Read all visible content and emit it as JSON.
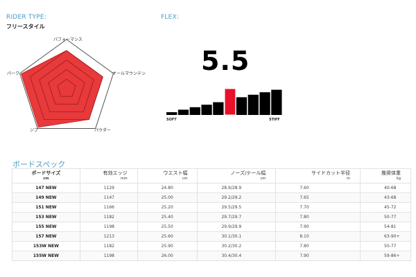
{
  "rider_type": {
    "label": "RIDER TYPE:",
    "value": "フリースタイル",
    "chart_data": {
      "type": "radar",
      "axes": [
        "パフォーマンス",
        "オールマウンテン",
        "パウダー",
        "ジブ",
        "パーク"
      ],
      "values": [
        4,
        4,
        4,
        5,
        5
      ],
      "max": 5,
      "color": "#e8393b"
    }
  },
  "flex": {
    "label": "FLEX:",
    "value": "5.5",
    "soft_label": "SOFT",
    "stiff_label": "STIFF",
    "scale_max": 10,
    "highlight_color": "#e8102a"
  },
  "specs": {
    "title": "ボードスペック",
    "headers": [
      {
        "name": "ボードサイズ",
        "unit": "cm"
      },
      {
        "name": "有効エッジ",
        "unit": "mm"
      },
      {
        "name": "ウエスト幅",
        "unit": "cm"
      },
      {
        "name": "ノーズ/テール幅",
        "unit": "cm"
      },
      {
        "name": "サイドカット半径",
        "unit": "m"
      },
      {
        "name": "推奨体重",
        "unit": "kg"
      }
    ],
    "rows": [
      [
        "147 NEW",
        "1129",
        "24.80",
        "28.9/28.9",
        "7.60",
        "40-68"
      ],
      [
        "149 NEW",
        "1147",
        "25.00",
        "29.2/29.2",
        "7.65",
        "43-68"
      ],
      [
        "151 NEW",
        "1166",
        "25.20",
        "29.5/29.5",
        "7.70",
        "45-72"
      ],
      [
        "153 NEW",
        "1182",
        "25.40",
        "29.7/29.7",
        "7.80",
        "50-77"
      ],
      [
        "155 NEW",
        "1198",
        "25.50",
        "29.9/29.9",
        "7.90",
        "54-81"
      ],
      [
        "157 NEW",
        "1213",
        "25.60",
        "30.1/30.1",
        "8.10",
        "63-90+"
      ],
      [
        "153W NEW",
        "1182",
        "25.90",
        "30.2/30.2",
        "7.80",
        "50-77"
      ],
      [
        "155W NEW",
        "1198",
        "26.00",
        "30.4/30.4",
        "7.90",
        "59-86+"
      ]
    ]
  }
}
